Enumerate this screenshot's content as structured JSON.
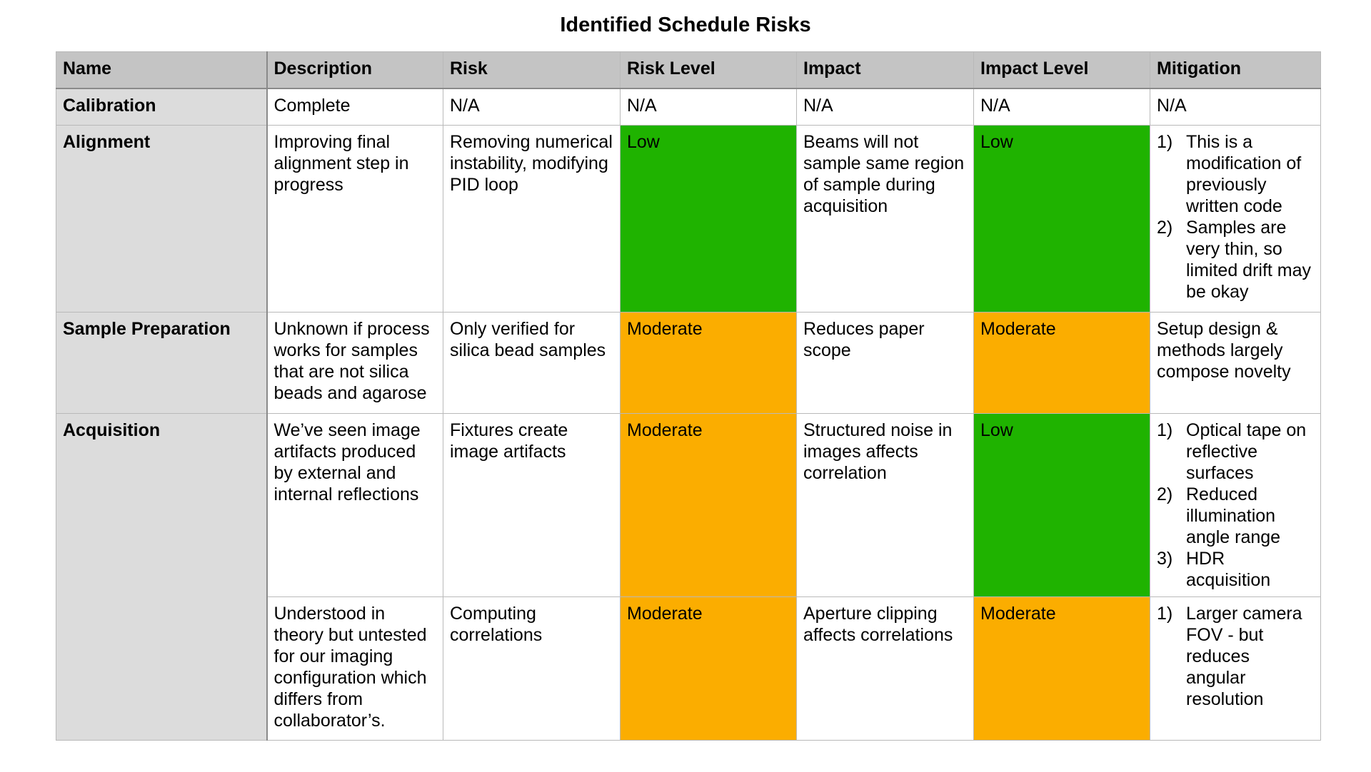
{
  "title": "Identified Schedule Risks",
  "colors": {
    "header_bg": "#c4c4c4",
    "name_col_bg": "#dcdcdc",
    "low": "#1fb300",
    "moderate": "#fbad00"
  },
  "columns": [
    "Name",
    "Description",
    "Risk",
    "Risk Level",
    "Impact",
    "Impact Level",
    "Mitigation"
  ],
  "rows": {
    "calibration": {
      "name": "Calibration",
      "description": "Complete",
      "risk": "N/A",
      "risk_level": "N/A",
      "impact": "N/A",
      "impact_level": "N/A",
      "mitigation": "N/A"
    },
    "alignment": {
      "name": "Alignment",
      "description": "Improving final alignment step in progress",
      "risk": "Removing numerical instability, modifying PID loop",
      "risk_level": "Low",
      "impact": "Beams will not sample same region of sample during acquisition",
      "impact_level": "Low",
      "mitigation_items": [
        {
          "num": "1)",
          "text": "This is a modification of previously written code"
        },
        {
          "num": "2)",
          "text": "Samples are very thin, so limited drift may be okay"
        }
      ]
    },
    "sample_preparation": {
      "name": "Sample Preparation",
      "description": "Unknown if process works for samples that are not silica beads and agarose",
      "risk": "Only verified for silica bead samples",
      "risk_level": "Moderate",
      "impact": "Reduces paper scope",
      "impact_level": "Moderate",
      "mitigation": "Setup design & methods largely compose novelty"
    },
    "acquisition": {
      "name": "Acquisition",
      "entries": [
        {
          "description": "We’ve seen image artifacts produced by external and internal reflections",
          "risk": "Fixtures create image artifacts",
          "risk_level": "Moderate",
          "impact": "Structured noise in images affects correlation",
          "impact_level": "Low",
          "mitigation_items": [
            {
              "num": "1)",
              "text": "Optical tape on reflective surfaces"
            },
            {
              "num": "2)",
              "text": "Reduced illumination angle range"
            },
            {
              "num": "3)",
              "text": "HDR acquisition"
            }
          ]
        },
        {
          "description": "Understood in theory but untested for our imaging configuration which differs from collaborator’s.",
          "risk": "Computing correlations",
          "risk_level": "Moderate",
          "impact": "Aperture clipping affects correlations",
          "impact_level": "Moderate",
          "mitigation_items": [
            {
              "num": "1)",
              "text": "Larger camera FOV - but reduces angular resolution"
            }
          ]
        }
      ]
    }
  }
}
